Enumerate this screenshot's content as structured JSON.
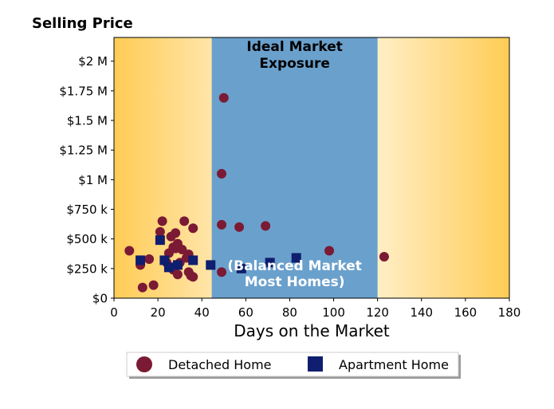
{
  "chart_data": {
    "type": "scatter",
    "title": "Selling Price",
    "xlabel": "Days on the Market",
    "ylabel": "",
    "xlim": [
      0,
      180
    ],
    "ylim": [
      0,
      2200000
    ],
    "x_ticks": [
      0,
      20,
      40,
      60,
      80,
      100,
      120,
      140,
      160,
      180
    ],
    "x_tick_labels": [
      "0",
      "20",
      "40",
      "60",
      "80",
      "100",
      "120",
      "140",
      "160",
      "180"
    ],
    "y_ticks": [
      0,
      250000,
      500000,
      750000,
      1000000,
      1250000,
      1500000,
      1750000,
      2000000
    ],
    "y_tick_labels": [
      "$0",
      "$250 k",
      "$500 k",
      "$750 k",
      "$1 M",
      "$1.25 M",
      "$1.5 M",
      "$1.75 M",
      "$2 M"
    ],
    "grid": false,
    "legend_position": "bottom-center",
    "bands": [
      {
        "x_start": 44.5,
        "x_end": 120,
        "color": "#6aa0cc",
        "label_top_1": "Ideal Market",
        "label_top_2": "Exposure",
        "label_bottom_1": "(Balanced Market",
        "label_bottom_2": "Most Homes)"
      }
    ],
    "background_gradient": {
      "edge_color": "#ffcc55",
      "center_color": "#ffffff"
    },
    "series": [
      {
        "name": "Detached Home",
        "marker": "circle",
        "color": "#7b1a34",
        "points": [
          {
            "x": 7,
            "y": 400000
          },
          {
            "x": 12,
            "y": 280000
          },
          {
            "x": 13,
            "y": 90000
          },
          {
            "x": 16,
            "y": 330000
          },
          {
            "x": 18,
            "y": 110000
          },
          {
            "x": 21,
            "y": 560000
          },
          {
            "x": 22,
            "y": 650000
          },
          {
            "x": 24,
            "y": 300000
          },
          {
            "x": 25,
            "y": 380000
          },
          {
            "x": 26,
            "y": 520000
          },
          {
            "x": 27,
            "y": 430000
          },
          {
            "x": 27,
            "y": 240000
          },
          {
            "x": 28,
            "y": 550000
          },
          {
            "x": 28,
            "y": 420000
          },
          {
            "x": 29,
            "y": 200000
          },
          {
            "x": 29,
            "y": 460000
          },
          {
            "x": 30,
            "y": 300000
          },
          {
            "x": 31,
            "y": 410000
          },
          {
            "x": 32,
            "y": 650000
          },
          {
            "x": 33,
            "y": 340000
          },
          {
            "x": 34,
            "y": 370000
          },
          {
            "x": 34,
            "y": 220000
          },
          {
            "x": 35,
            "y": 190000
          },
          {
            "x": 36,
            "y": 590000
          },
          {
            "x": 36,
            "y": 180000
          },
          {
            "x": 49,
            "y": 1050000
          },
          {
            "x": 49,
            "y": 620000
          },
          {
            "x": 49,
            "y": 220000
          },
          {
            "x": 50,
            "y": 1690000
          },
          {
            "x": 57,
            "y": 600000
          },
          {
            "x": 69,
            "y": 610000
          },
          {
            "x": 98,
            "y": 400000
          },
          {
            "x": 123,
            "y": 350000
          }
        ]
      },
      {
        "name": "Apartment Home",
        "marker": "square",
        "color": "#0f1e6e",
        "points": [
          {
            "x": 12,
            "y": 320000
          },
          {
            "x": 21,
            "y": 490000
          },
          {
            "x": 23,
            "y": 320000
          },
          {
            "x": 25,
            "y": 260000
          },
          {
            "x": 29,
            "y": 280000
          },
          {
            "x": 36,
            "y": 320000
          },
          {
            "x": 44,
            "y": 280000
          },
          {
            "x": 58,
            "y": 250000
          },
          {
            "x": 71,
            "y": 300000
          },
          {
            "x": 83,
            "y": 340000
          }
        ]
      }
    ]
  }
}
